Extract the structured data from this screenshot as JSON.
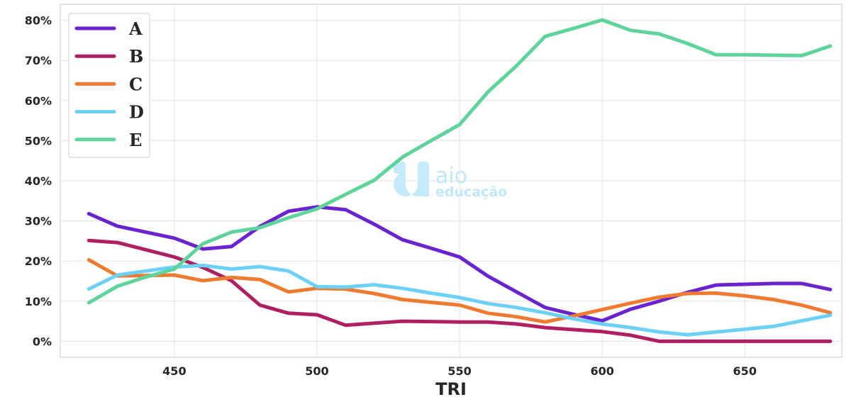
{
  "chart_data": {
    "type": "line",
    "xlabel": "TRI",
    "ylabel": "",
    "xlim": [
      410,
      684
    ],
    "ylim": [
      -4,
      84
    ],
    "xticks": [
      450,
      500,
      550,
      600,
      650
    ],
    "yticks": [
      0,
      10,
      20,
      30,
      40,
      50,
      60,
      70,
      80
    ],
    "ytick_suffix": "%",
    "grid": true,
    "legend_position": "top-left",
    "x": [
      420,
      430,
      440,
      450,
      460,
      470,
      480,
      490,
      500,
      510,
      520,
      530,
      540,
      550,
      560,
      570,
      580,
      590,
      600,
      610,
      620,
      630,
      640,
      650,
      660,
      670,
      680
    ],
    "series": [
      {
        "name": "A",
        "color": "#6a24cf",
        "values": [
          31.8,
          28.7,
          27.2,
          25.7,
          23.0,
          23.6,
          28.6,
          32.4,
          33.5,
          32.8,
          29.2,
          25.3,
          23.2,
          21.0,
          16.2,
          12.3,
          8.4,
          6.7,
          5.1,
          8.0,
          10.0,
          12.2,
          14.0,
          14.2,
          14.4,
          14.4,
          12.9
        ]
      },
      {
        "name": "B",
        "color": "#b01f62",
        "values": [
          25.1,
          24.6,
          22.8,
          21.0,
          18.4,
          15.1,
          9.0,
          7.0,
          6.6,
          4.0,
          4.5,
          5.0,
          4.9,
          4.8,
          4.8,
          4.3,
          3.4,
          2.9,
          2.4,
          1.5,
          0.0,
          0.0,
          0.0,
          0.0,
          0.0,
          0.0,
          0.0
        ]
      },
      {
        "name": "C",
        "color": "#f07a30",
        "values": [
          20.3,
          16.3,
          16.4,
          16.5,
          15.1,
          15.9,
          15.4,
          12.3,
          13.2,
          13.0,
          11.9,
          10.4,
          9.7,
          9.0,
          7.0,
          6.1,
          4.8,
          6.3,
          7.9,
          9.5,
          11.0,
          11.9,
          12.0,
          11.3,
          10.4,
          9.0,
          7.1
        ]
      },
      {
        "name": "D",
        "color": "#6dd0f6",
        "values": [
          13.0,
          16.5,
          17.5,
          18.5,
          18.9,
          18.0,
          18.6,
          17.5,
          13.6,
          13.5,
          14.1,
          13.2,
          12.0,
          10.9,
          9.4,
          8.4,
          7.1,
          5.6,
          4.3,
          3.4,
          2.3,
          1.6,
          2.3,
          3.0,
          3.7,
          5.1,
          6.5
        ]
      },
      {
        "name": "E",
        "color": "#5ed49c",
        "values": [
          9.6,
          13.7,
          16.0,
          18.0,
          24.3,
          27.2,
          28.3,
          30.8,
          33.0,
          36.6,
          40.1,
          45.9,
          50.0,
          54.0,
          62.2,
          68.7,
          76.0,
          78.0,
          80.1,
          77.5,
          76.6,
          74.2,
          71.4,
          71.4,
          71.3,
          71.2,
          73.6
        ]
      }
    ]
  },
  "watermark": {
    "line1": "aio",
    "line2": "educação"
  }
}
